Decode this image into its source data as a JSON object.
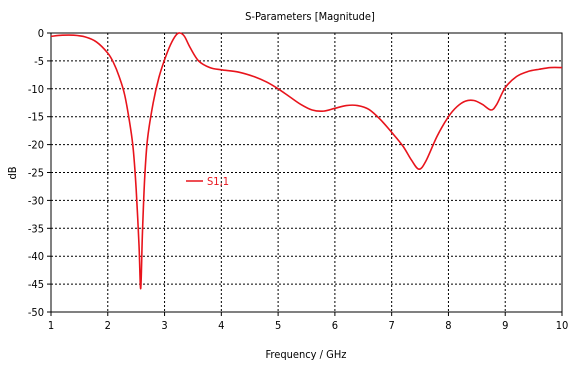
{
  "chart_data": {
    "type": "line",
    "title": "S-Parameters [Magnitude]",
    "xlabel": "Frequency / GHz",
    "ylabel": "dB",
    "xlim": [
      1,
      10
    ],
    "ylim": [
      -50,
      0
    ],
    "x_ticks": [
      1,
      2,
      3,
      4,
      5,
      6,
      7,
      8,
      9,
      10
    ],
    "y_ticks": [
      0,
      -5,
      -10,
      -15,
      -20,
      -25,
      -30,
      -35,
      -40,
      -45,
      -50
    ],
    "grid": true,
    "legend_position": "center-left",
    "series": [
      {
        "name": "S1,1",
        "color": "#e8141c",
        "points": [
          [
            1.0,
            -0.6
          ],
          [
            1.2,
            -0.4
          ],
          [
            1.4,
            -0.4
          ],
          [
            1.6,
            -0.7
          ],
          [
            1.8,
            -1.6
          ],
          [
            2.0,
            -3.6
          ],
          [
            2.1,
            -5.3
          ],
          [
            2.2,
            -7.8
          ],
          [
            2.3,
            -11.2
          ],
          [
            2.4,
            -17.0
          ],
          [
            2.45,
            -21.0
          ],
          [
            2.5,
            -28.0
          ],
          [
            2.55,
            -38.0
          ],
          [
            2.58,
            -45.8
          ],
          [
            2.61,
            -36.0
          ],
          [
            2.65,
            -26.0
          ],
          [
            2.7,
            -19.0
          ],
          [
            2.8,
            -12.5
          ],
          [
            2.9,
            -8.0
          ],
          [
            3.0,
            -4.8
          ],
          [
            3.1,
            -2.2
          ],
          [
            3.2,
            -0.4
          ],
          [
            3.27,
            0.0
          ],
          [
            3.35,
            -0.6
          ],
          [
            3.45,
            -2.6
          ],
          [
            3.6,
            -5.0
          ],
          [
            3.8,
            -6.2
          ],
          [
            4.0,
            -6.6
          ],
          [
            4.3,
            -7.0
          ],
          [
            4.6,
            -7.9
          ],
          [
            4.8,
            -8.8
          ],
          [
            5.0,
            -10.0
          ],
          [
            5.2,
            -11.4
          ],
          [
            5.4,
            -12.8
          ],
          [
            5.6,
            -13.8
          ],
          [
            5.8,
            -14.0
          ],
          [
            6.0,
            -13.5
          ],
          [
            6.2,
            -13.0
          ],
          [
            6.4,
            -13.0
          ],
          [
            6.6,
            -13.7
          ],
          [
            6.8,
            -15.5
          ],
          [
            7.0,
            -17.8
          ],
          [
            7.2,
            -20.3
          ],
          [
            7.35,
            -22.8
          ],
          [
            7.48,
            -24.4
          ],
          [
            7.6,
            -23.0
          ],
          [
            7.8,
            -18.5
          ],
          [
            8.0,
            -15.0
          ],
          [
            8.15,
            -13.2
          ],
          [
            8.3,
            -12.2
          ],
          [
            8.45,
            -12.1
          ],
          [
            8.6,
            -12.8
          ],
          [
            8.75,
            -13.8
          ],
          [
            8.85,
            -12.8
          ],
          [
            9.0,
            -9.8
          ],
          [
            9.2,
            -7.8
          ],
          [
            9.4,
            -6.9
          ],
          [
            9.6,
            -6.5
          ],
          [
            9.8,
            -6.2
          ],
          [
            10.0,
            -6.2
          ]
        ]
      }
    ]
  }
}
